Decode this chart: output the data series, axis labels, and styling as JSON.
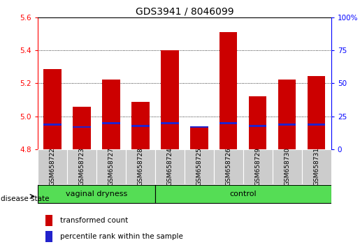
{
  "title": "GDS3941 / 8046099",
  "samples": [
    "GSM658722",
    "GSM658723",
    "GSM658727",
    "GSM658728",
    "GSM658724",
    "GSM658725",
    "GSM658726",
    "GSM658729",
    "GSM658730",
    "GSM658731"
  ],
  "transformed_count": [
    5.285,
    5.06,
    5.225,
    5.09,
    5.4,
    4.93,
    5.51,
    5.12,
    5.225,
    5.245
  ],
  "base": 4.8,
  "percentile_values": [
    0.19,
    0.17,
    0.2,
    0.18,
    0.2,
    0.17,
    0.2,
    0.18,
    0.19,
    0.19
  ],
  "ylim_left": [
    4.8,
    5.6
  ],
  "ylim_right": [
    0,
    100
  ],
  "yticks_left": [
    4.8,
    5.0,
    5.2,
    5.4,
    5.6
  ],
  "yticks_right": [
    0,
    25,
    50,
    75,
    100
  ],
  "ytick_labels_right": [
    "0",
    "25",
    "50",
    "75",
    "100%"
  ],
  "grid_lines": [
    5.0,
    5.2,
    5.4
  ],
  "groups": [
    {
      "label": "vaginal dryness",
      "start": 0,
      "end": 3
    },
    {
      "label": "control",
      "start": 4,
      "end": 9
    }
  ],
  "bar_color": "#cc0000",
  "percentile_color": "#2222cc",
  "bg_color_samples": "#cccccc",
  "group_color": "#55dd55",
  "disease_state_label": "disease state",
  "legend_items": [
    {
      "label": "transformed count",
      "color": "#cc0000"
    },
    {
      "label": "percentile rank within the sample",
      "color": "#2222cc"
    }
  ],
  "title_fontsize": 10,
  "tick_fontsize": 7.5,
  "label_fontsize": 7.5
}
